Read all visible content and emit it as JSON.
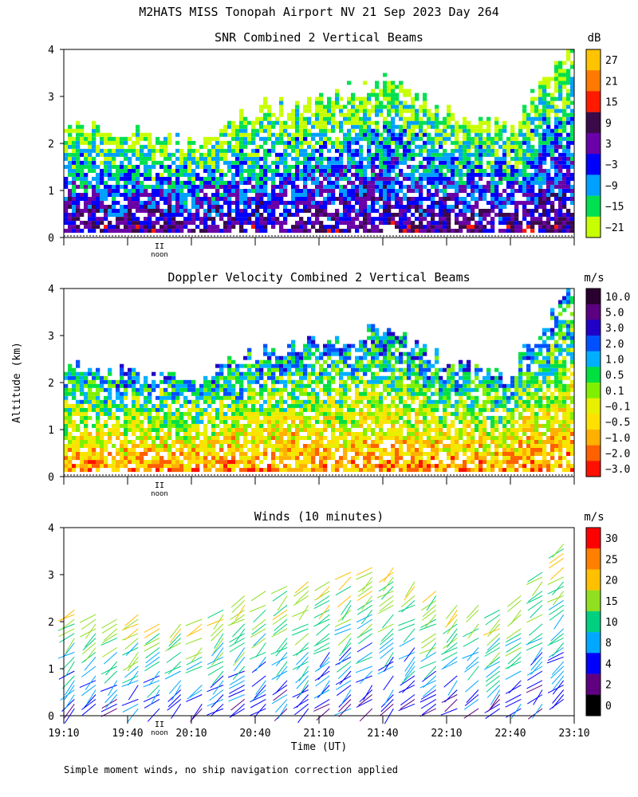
{
  "chart_data": {
    "type": "heatmap",
    "title": "M2HATS MISS Tonopah Airport NV  21 Sep 2023 Day 264",
    "ylabel": "Altitude (km)",
    "xlabel": "Time (UT)",
    "footnote": "Simple moment winds, no ship navigation correction applied",
    "noon_label": "noon",
    "noon_marker": "II",
    "x_ticks": [
      "19:10",
      "19:40",
      "20:10",
      "20:40",
      "21:10",
      "21:40",
      "22:10",
      "22:40",
      "23:10"
    ],
    "x_range_utc": [
      "19:10",
      "23:10"
    ],
    "noon_utc": "19:55",
    "y_ticks": [
      "0",
      "1",
      "2",
      "3",
      "4"
    ],
    "ylim": [
      0,
      4
    ],
    "panels": [
      {
        "name": "snr",
        "type": "heatmap",
        "title": "SNR Combined 2 Vertical Beams",
        "units": "dB",
        "colorbar_labels": [
          "27",
          "21",
          "15",
          "9",
          "3",
          "−3",
          "−9",
          "−15",
          "−21"
        ],
        "colors": [
          "#ffc400",
          "#ff7a00",
          "#ff1a00",
          "#3a0a4a",
          "#6a00a8",
          "#0000ff",
          "#00a0ff",
          "#00e050",
          "#c8ff00"
        ],
        "top_km_by_hour": [
          2.3,
          2.2,
          2.0,
          2.7,
          2.9,
          3.3,
          2.6,
          2.3,
          4.0
        ]
      },
      {
        "name": "doppler",
        "type": "heatmap",
        "title": "Doppler Velocity Combined 2 Vertical Beams",
        "units": "m/s",
        "colorbar_labels": [
          "10.0",
          "5.0",
          "3.0",
          "2.0",
          "1.0",
          "0.5",
          "0.1",
          "−0.1",
          "−0.5",
          "−1.0",
          "−2.0",
          "−3.0"
        ],
        "colors": [
          "#2a0030",
          "#5a0080",
          "#2000c8",
          "#0050ff",
          "#00b0ff",
          "#00e040",
          "#80f000",
          "#e8f000",
          "#ffe000",
          "#ffb000",
          "#ff6000",
          "#ff1000"
        ],
        "top_km_by_hour": [
          2.3,
          2.2,
          2.0,
          2.6,
          2.8,
          3.1,
          2.4,
          2.1,
          4.0
        ]
      },
      {
        "name": "winds",
        "type": "barbs",
        "title": "Winds (10 minutes)",
        "units": "m/s",
        "colorbar_labels": [
          "30",
          "25",
          "20",
          "15",
          "10",
          "8",
          "4",
          "2",
          "0"
        ],
        "colors": [
          "#ff0000",
          "#ff8000",
          "#ffc000",
          "#90e020",
          "#00d080",
          "#00a8ff",
          "#0000ff",
          "#600080",
          "#000000"
        ],
        "interval_minutes": 10
      }
    ]
  }
}
